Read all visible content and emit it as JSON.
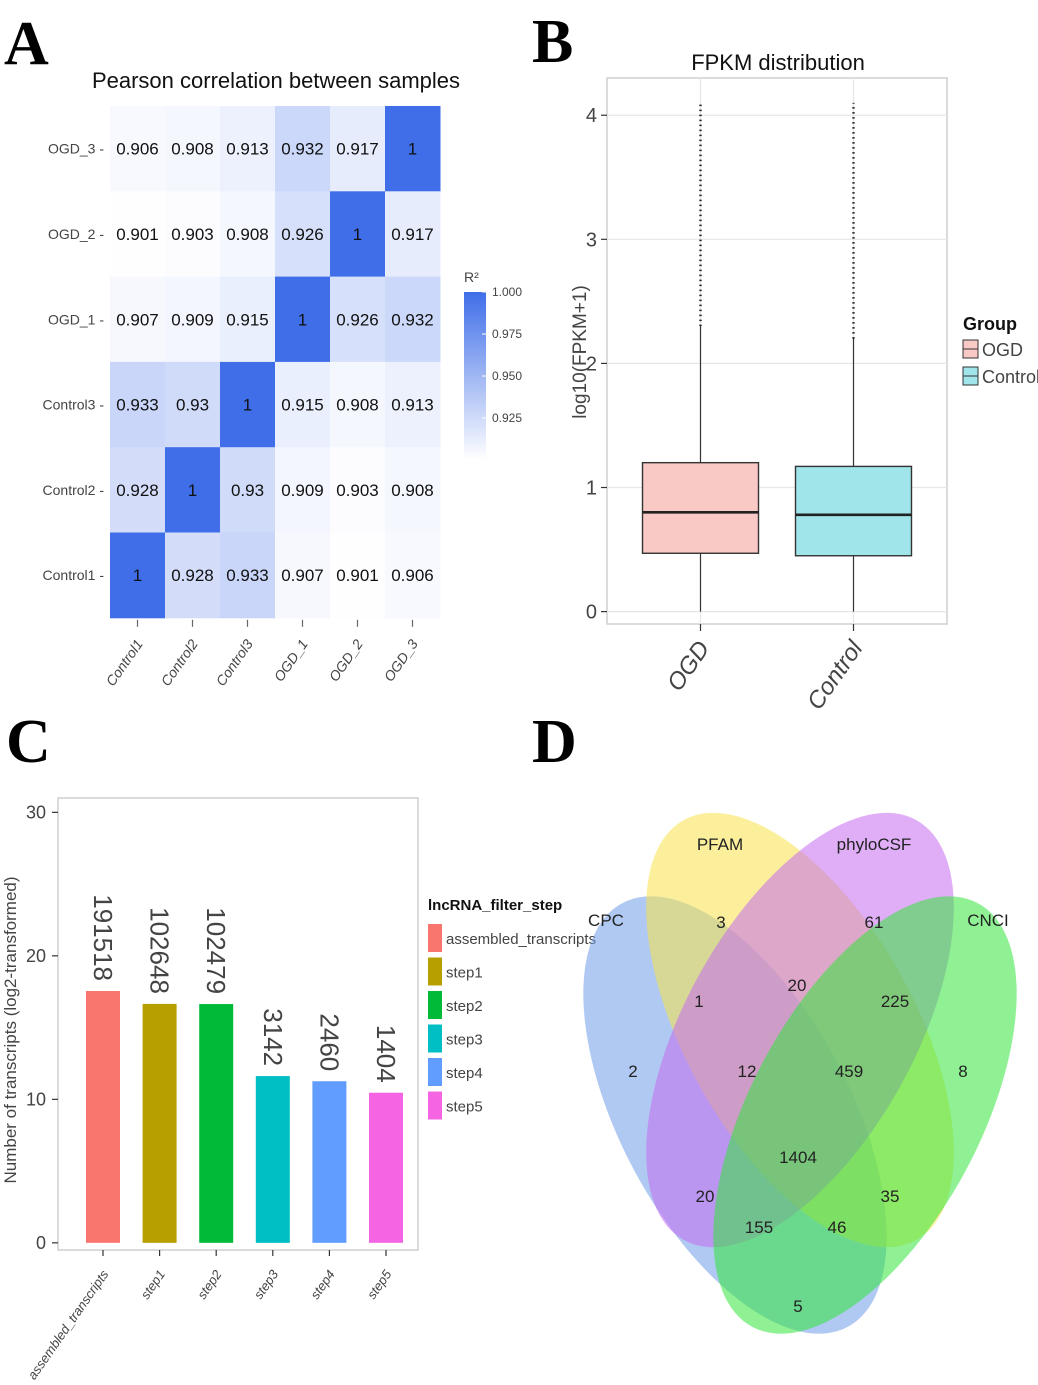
{
  "panels": {
    "a": "A",
    "b": "B",
    "c": "C",
    "d": "D"
  },
  "colors": {
    "heat_low": "#ffffff",
    "heat_high": "#3f6ee8",
    "ogd_fill": "#f9c9c5",
    "control_fill": "#9fe5e9",
    "panel_bg": "#ffffff",
    "grid": "#e6e6e6"
  },
  "chart_data": [
    {
      "type": "heatmap",
      "title": "Pearson correlation between samples",
      "columns": [
        "Control1",
        "Control2",
        "Control3",
        "OGD_1",
        "OGD_2",
        "OGD_3"
      ],
      "rows": [
        "OGD_3",
        "OGD_2",
        "OGD_1",
        "Control3",
        "Control2",
        "Control1"
      ],
      "row_labels": [
        "OGD_3 -",
        "OGD_2 -",
        "OGD_1 -",
        "Control3 -",
        "Control2 -",
        "Control1 -"
      ],
      "values": [
        [
          0.906,
          0.908,
          0.913,
          0.932,
          0.917,
          1
        ],
        [
          0.901,
          0.903,
          0.908,
          0.926,
          1,
          0.917
        ],
        [
          0.907,
          0.909,
          0.915,
          1,
          0.926,
          0.932
        ],
        [
          0.933,
          0.93,
          1,
          0.915,
          0.908,
          0.913
        ],
        [
          0.928,
          1,
          0.93,
          0.909,
          0.903,
          0.908
        ],
        [
          1,
          0.928,
          0.933,
          0.907,
          0.901,
          0.906
        ]
      ],
      "value_labels": [
        [
          "0.906",
          "0.908",
          "0.913",
          "0.932",
          "0.917",
          "1"
        ],
        [
          "0.901",
          "0.903",
          "0.908",
          "0.926",
          "1",
          "0.917"
        ],
        [
          "0.907",
          "0.909",
          "0.915",
          "1",
          "0.926",
          "0.932"
        ],
        [
          "0.933",
          "0.93",
          "1",
          "0.915",
          "0.908",
          "0.913"
        ],
        [
          "0.928",
          "1",
          "0.93",
          "0.909",
          "0.903",
          "0.908"
        ],
        [
          "1",
          "0.928",
          "0.933",
          "0.907",
          "0.901",
          "0.906"
        ]
      ],
      "legend": {
        "title": "R²",
        "min": 0.9,
        "max": 1.0,
        "ticks": [
          1.0,
          0.975,
          0.95,
          0.925
        ],
        "tick_labels": [
          "1.000",
          "0.975",
          "0.950",
          "0.925"
        ],
        "placement": "right"
      }
    },
    {
      "type": "box",
      "title": "FPKM distribution",
      "ylabel": "log10(FPKM+1)",
      "ylim": [
        -0.1,
        4.3
      ],
      "yticks": [
        0,
        1,
        2,
        3,
        4
      ],
      "ytick_labels": [
        "0",
        "1",
        "2",
        "3",
        "4"
      ],
      "categories": [
        "OGD",
        "Control"
      ],
      "boxes": [
        {
          "name": "OGD",
          "min": 0,
          "q1": 0.47,
          "median": 0.8,
          "q3": 1.2,
          "whisker_high": 2.3,
          "outlier_max": 4.1
        },
        {
          "name": "Control",
          "min": 0,
          "q1": 0.45,
          "median": 0.78,
          "q3": 1.17,
          "whisker_high": 2.2,
          "outlier_max": 4.1
        }
      ],
      "legend": {
        "title": "Group",
        "entries": [
          "OGD",
          "Control"
        ],
        "placement": "right"
      },
      "grid": true
    },
    {
      "type": "bar",
      "xlabel": "",
      "ylabel": "Number of transcripts (log2-transformed)",
      "ylim": [
        -0.5,
        31
      ],
      "yticks": [
        0,
        10,
        20,
        30
      ],
      "ytick_labels": [
        "0",
        "10",
        "20",
        "30"
      ],
      "categories": [
        "assembled_transcripts",
        "step1",
        "step2",
        "step3",
        "step4",
        "step5"
      ],
      "counts": [
        191518,
        102648,
        102479,
        3142,
        2460,
        1404
      ],
      "count_labels": [
        "191518",
        "102648",
        "102479",
        "3142",
        "2460",
        "1404"
      ],
      "values": [
        17.55,
        16.65,
        16.64,
        11.62,
        11.26,
        10.46
      ],
      "legend": {
        "title": "lncRNA_filter_step",
        "entries": [
          "assembled_transcripts",
          "step1",
          "step2",
          "step3",
          "step4",
          "step5"
        ],
        "placement": "right"
      },
      "bar_colors": [
        "#f8766d",
        "#b79f00",
        "#00ba38",
        "#00bfc4",
        "#619cff",
        "#f564e3"
      ]
    },
    {
      "type": "venn",
      "sets": [
        "CPC",
        "PFAM",
        "phyloCSF",
        "CNCI"
      ],
      "regions": [
        {
          "sets": [
            "CPC"
          ],
          "value": 2
        },
        {
          "sets": [
            "PFAM"
          ],
          "value": 3
        },
        {
          "sets": [
            "phyloCSF"
          ],
          "value": 61
        },
        {
          "sets": [
            "CNCI"
          ],
          "value": 8
        },
        {
          "sets": [
            "CPC",
            "PFAM"
          ],
          "value": 1
        },
        {
          "sets": [
            "PFAM",
            "phyloCSF"
          ],
          "value": 20
        },
        {
          "sets": [
            "phyloCSF",
            "CNCI"
          ],
          "value": 225
        },
        {
          "sets": [
            "CPC",
            "PFAM",
            "phyloCSF"
          ],
          "value": 12
        },
        {
          "sets": [
            "PFAM",
            "phyloCSF",
            "CNCI"
          ],
          "value": 459
        },
        {
          "sets": [
            "CPC",
            "PFAM",
            "phyloCSF",
            "CNCI"
          ],
          "value": 1404
        },
        {
          "sets": [
            "CPC",
            "phyloCSF"
          ],
          "value": 20
        },
        {
          "sets": [
            "PFAM",
            "CNCI"
          ],
          "value": 35
        },
        {
          "sets": [
            "CPC",
            "phyloCSF",
            "CNCI"
          ],
          "value": 155
        },
        {
          "sets": [
            "CPC",
            "PFAM",
            "CNCI"
          ],
          "value": 46
        },
        {
          "sets": [
            "CPC",
            "CNCI"
          ],
          "value": 5
        }
      ],
      "set_colors": [
        "#6f9ce8",
        "#f7e24a",
        "#c46cf0",
        "#33e63a"
      ]
    }
  ]
}
